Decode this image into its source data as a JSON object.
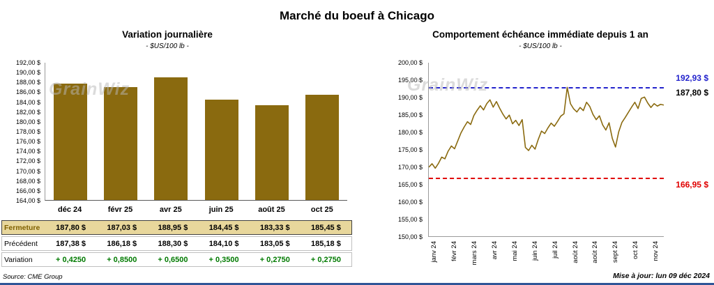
{
  "page": {
    "title": "Marché du boeuf à Chicago",
    "source_note": "Source: CME Group",
    "update_note": "Mise à jour: lun 09 déc 2024",
    "watermark": "GrainWiz"
  },
  "colors": {
    "gold": "#8a6a0f",
    "fermeture_bg": "#e8d79c",
    "fermeture_text": "#7f6000",
    "variation_green": "#007a00",
    "high_blue": "#2222cc",
    "low_red": "#e00000",
    "footer_blue": "#2f5597"
  },
  "table": {
    "rows": [
      {
        "label": "Fermeture",
        "values": [
          "187,80  $",
          "187,03  $",
          "188,95  $",
          "184,45  $",
          "183,33  $",
          "185,45  $"
        ]
      },
      {
        "label": "Précédent",
        "values": [
          "187,38  $",
          "186,18  $",
          "188,30  $",
          "184,10  $",
          "183,05  $",
          "185,18  $"
        ]
      },
      {
        "label": "Variation",
        "values": [
          "+ 0,4250",
          "+ 0,8500",
          "+ 0,6500",
          "+ 0,3500",
          "+ 0,2750",
          "+ 0,2750"
        ]
      }
    ]
  },
  "chart_data": [
    {
      "type": "bar",
      "title": "Variation journalière",
      "subtitle": "- $US/100 lb -",
      "categories": [
        "déc 24",
        "févr 25",
        "avr 25",
        "juin 25",
        "août 25",
        "oct 25"
      ],
      "values": [
        187.8,
        187.03,
        188.95,
        184.45,
        183.33,
        185.45
      ],
      "ylim": [
        164,
        192
      ],
      "ytick_step": 2,
      "ytick_labels": [
        "192,00 $",
        "190,00 $",
        "188,00 $",
        "186,00 $",
        "184,00 $",
        "182,00 $",
        "180,00 $",
        "178,00 $",
        "176,00 $",
        "174,00 $",
        "172,00 $",
        "170,00 $",
        "168,00 $",
        "166,00 $",
        "164,00 $"
      ],
      "grid": false,
      "bar_color": "#8a6a0f"
    },
    {
      "type": "line",
      "title": "Comportement échéance immédiate depuis 1 an",
      "subtitle": "- $US/100 lb -",
      "x_labels": [
        "janv 24",
        "févr 24",
        "mars 24",
        "avr 24",
        "mai 24",
        "juin 24",
        "juil 24",
        "août 24",
        "août 24",
        "sept 24",
        "oct 24",
        "nov 24"
      ],
      "values": [
        169.9,
        170.9,
        169.6,
        171.0,
        172.8,
        172.3,
        174.5,
        176.0,
        175.2,
        177.5,
        179.8,
        181.5,
        183.0,
        182.2,
        184.8,
        186.3,
        187.6,
        186.4,
        188.2,
        189.3,
        187.2,
        188.8,
        186.9,
        185.2,
        183.8,
        184.9,
        182.4,
        183.4,
        181.9,
        183.6,
        175.6,
        174.7,
        176.2,
        175.1,
        177.9,
        180.3,
        179.6,
        181.2,
        182.6,
        181.7,
        183.1,
        184.6,
        185.3,
        192.9,
        188.2,
        186.7,
        185.8,
        187.1,
        186.2,
        188.6,
        187.4,
        185.1,
        183.6,
        184.7,
        182.1,
        180.6,
        182.7,
        178.2,
        175.7,
        180.1,
        182.8,
        184.2,
        185.7,
        187.2,
        188.6,
        186.8,
        189.7,
        190.1,
        188.4,
        187.1,
        188.2,
        187.5,
        188.0,
        187.8
      ],
      "ylim": [
        150,
        200
      ],
      "ytick_step": 5,
      "ytick_labels": [
        "200,00 $",
        "195,00 $",
        "190,00 $",
        "185,00 $",
        "180,00 $",
        "175,00 $",
        "170,00 $",
        "165,00 $",
        "160,00 $",
        "155,00 $",
        "150,00 $"
      ],
      "grid": false,
      "line_color": "#8a6a0f",
      "high_line": {
        "value": 192.93,
        "label": "192,93 $",
        "color": "#2222cc"
      },
      "last_label": {
        "value": 187.8,
        "label": "187,80 $",
        "color": "#000000"
      },
      "low_line": {
        "value": 166.95,
        "label": "166,95 $",
        "color": "#e00000"
      }
    }
  ]
}
